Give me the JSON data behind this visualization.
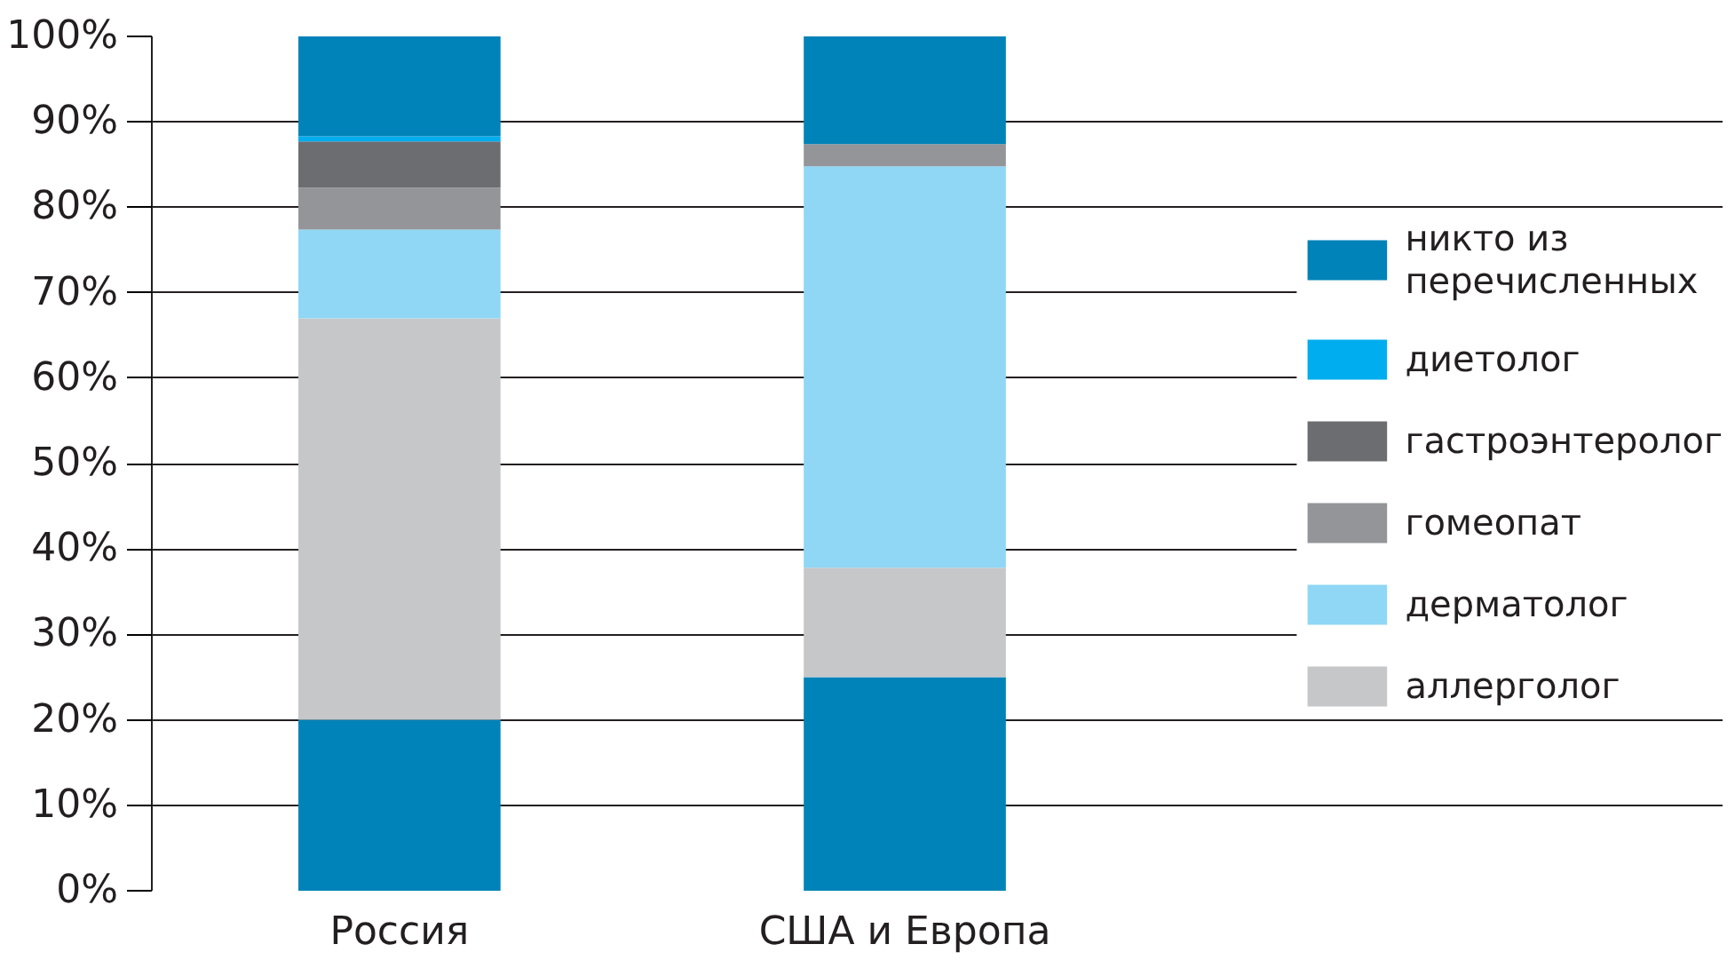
{
  "chart_data": {
    "type": "bar",
    "stacked": true,
    "categories": [
      "Россия",
      "США и Европа"
    ],
    "series": [
      {
        "color": "#0083b8",
        "values": [
          20,
          25
        ]
      },
      {
        "name": "аллерголог",
        "color": "#c6c7c9",
        "values": [
          47,
          12.8
        ]
      },
      {
        "name": "дерматолог",
        "color": "#8fd7f5",
        "values": [
          10.4,
          47
        ]
      },
      {
        "name": "гомеопат",
        "color": "#939598",
        "values": [
          4.9,
          2.6
        ]
      },
      {
        "name": "гастроэнтеролог",
        "color": "#6b6d71",
        "values": [
          5.4,
          0
        ]
      },
      {
        "name": "диетолог",
        "color": "#00adee",
        "values": [
          0.6,
          0
        ]
      },
      {
        "name": "никто из перечисленных",
        "color": "#0083b8",
        "values": [
          11.7,
          12.6
        ]
      }
    ],
    "ylim": [
      0,
      100
    ],
    "yticks": [
      {
        "value": 0,
        "label": "0%"
      },
      {
        "value": 10,
        "label": "10%"
      },
      {
        "value": 20,
        "label": "20%"
      },
      {
        "value": 30,
        "label": "30%"
      },
      {
        "value": 40,
        "label": "40%"
      },
      {
        "value": 50,
        "label": "50%"
      },
      {
        "value": 60,
        "label": "60%"
      },
      {
        "value": 70,
        "label": "70%"
      },
      {
        "value": 80,
        "label": "80%"
      },
      {
        "value": 90,
        "label": "90%"
      },
      {
        "value": 100,
        "label": "100%"
      }
    ],
    "grid": "y",
    "legend": "right"
  }
}
